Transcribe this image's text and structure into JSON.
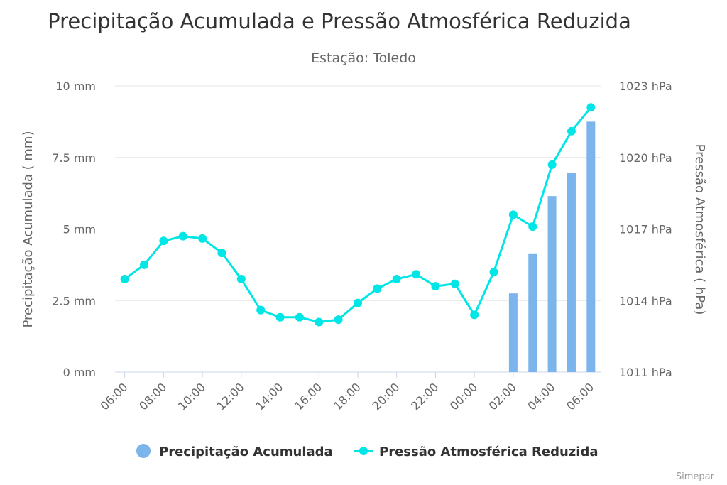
{
  "chart_data": {
    "type": "bar+line",
    "title": "Precipitação Acumulada e Pressão Atmosférica Reduzida",
    "subtitle": "Estação: Toledo",
    "credits": "Simepar",
    "x": [
      "06:00",
      "07:00",
      "08:00",
      "09:00",
      "10:00",
      "11:00",
      "12:00",
      "13:00",
      "14:00",
      "15:00",
      "16:00",
      "17:00",
      "18:00",
      "19:00",
      "20:00",
      "21:00",
      "22:00",
      "23:00",
      "00:00",
      "01:00",
      "02:00",
      "03:00",
      "04:00",
      "05:00",
      "06:00"
    ],
    "x_tick_labels": [
      "06:00",
      "08:00",
      "10:00",
      "12:00",
      "14:00",
      "16:00",
      "18:00",
      "20:00",
      "22:00",
      "00:00",
      "02:00",
      "04:00",
      "06:00"
    ],
    "y_left": {
      "label": "Precipitação Acumulada ( mm)",
      "min": 0,
      "max": 10,
      "ticks": [
        0,
        2.5,
        5,
        7.5,
        10
      ],
      "tick_labels": [
        "0 mm",
        "2.5 mm",
        "5 mm",
        "7.5 mm",
        "10 mm"
      ]
    },
    "y_right": {
      "label": "Pressão Atmosférica ( hPa)",
      "min": 1011,
      "max": 1023,
      "ticks": [
        1011,
        1014,
        1017,
        1020,
        1023
      ],
      "tick_labels": [
        "1011 hPa",
        "1014 hPa",
        "1017 hPa",
        "1020 hPa",
        "1023 hPa"
      ]
    },
    "grid": true,
    "legend_position": "bottom-center",
    "series": [
      {
        "name": "Precipitação Acumulada",
        "type": "bar",
        "axis": "left",
        "color": "#7cb5ec",
        "values": [
          0,
          0,
          0,
          0,
          0,
          0,
          0,
          0,
          0,
          0,
          0,
          0,
          0,
          0,
          0,
          0,
          0,
          0,
          0,
          0,
          2.75,
          4.15,
          6.15,
          6.95,
          8.75
        ]
      },
      {
        "name": "Pressão Atmosférica Reduzida",
        "type": "line",
        "axis": "right",
        "color": "#00e6e6",
        "values": [
          1014.9,
          1015.5,
          1016.5,
          1016.7,
          1016.6,
          1016.0,
          1014.9,
          1013.6,
          1013.3,
          1013.3,
          1013.1,
          1013.2,
          1013.9,
          1014.5,
          1014.9,
          1015.1,
          1014.6,
          1014.7,
          1013.4,
          1015.2,
          1017.6,
          1017.1,
          1019.7,
          1021.1,
          1022.1
        ]
      }
    ]
  }
}
